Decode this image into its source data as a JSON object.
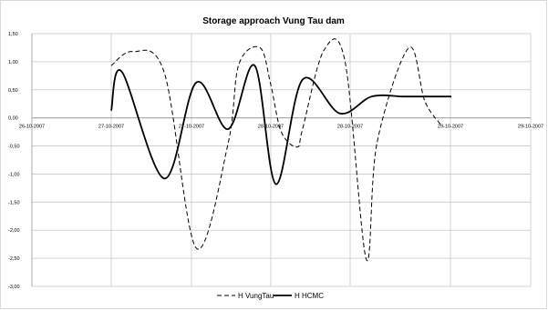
{
  "chart_data": {
    "type": "line",
    "title": "Storage approach Vung Tau dam",
    "xlabel": "",
    "ylabel": "",
    "ylim": [
      -3.0,
      1.5
    ],
    "xlim_days": [
      0,
      3.5
    ],
    "y_ticks": [
      "1,50",
      "1,00",
      "0,50",
      "0,00",
      "-0,50",
      "-1,00",
      "-1,50",
      "-2,00",
      "-2,50",
      "-3,00"
    ],
    "x_ticks": [
      "26-10-2007",
      "27-10-2007",
      "27-10-2007",
      "28-10-2007",
      "28-10-2007",
      "29-10-2007",
      "29-10-2007"
    ],
    "grid": true,
    "legend_position": "bottom",
    "series": [
      {
        "name": "H VungTau",
        "style": "dashed",
        "x": [
          0.0,
          0.2,
          0.5,
          0.8,
          1.1,
          1.2,
          1.4,
          1.5,
          1.6,
          1.75,
          1.8,
          2.0,
          2.2,
          2.4,
          2.5,
          2.8,
          2.95,
          3.1
        ],
        "values": [
          0.93,
          1.18,
          0.8,
          -2.32,
          -0.45,
          0.95,
          1.25,
          0.6,
          -0.25,
          -0.52,
          -0.2,
          1.2,
          1.0,
          -2.52,
          -0.45,
          1.25,
          0.3,
          -0.12
        ]
      },
      {
        "name": "H HCMC",
        "style": "solid",
        "x": [
          0.0,
          0.1,
          0.5,
          0.8,
          1.1,
          1.35,
          1.55,
          1.8,
          2.15,
          2.45,
          2.75,
          2.9,
          3.05,
          3.2
        ],
        "values": [
          0.13,
          0.82,
          -1.08,
          0.63,
          -0.2,
          0.93,
          -1.18,
          0.68,
          0.08,
          0.38,
          0.38,
          0.38,
          0.38,
          0.38
        ]
      }
    ]
  }
}
